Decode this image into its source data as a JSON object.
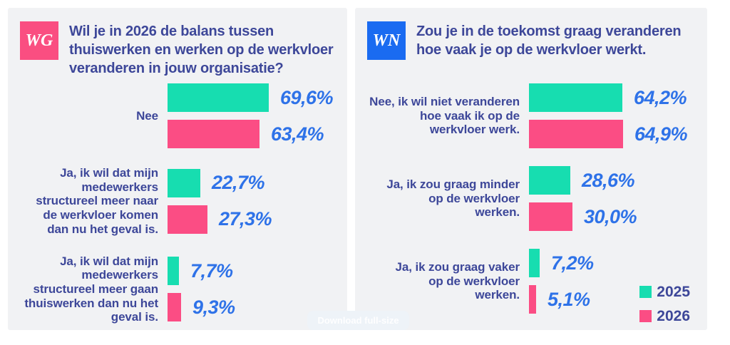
{
  "colors": {
    "teal_2025": "#17ddb0",
    "pink_2026": "#fb4d84",
    "badge_wg": "#fa4e81",
    "badge_wn": "#1a6bf1",
    "title_navy": "#3d4799",
    "value_blue": "#2e72e8",
    "panel_background": "#f1f2f4"
  },
  "legend": {
    "items": [
      {
        "label": "2025",
        "color": "#17ddb0"
      },
      {
        "label": "2026",
        "color": "#fb4d84"
      }
    ],
    "position": "bottom-right of right panel"
  },
  "watermark": {
    "label": "Download full-size"
  },
  "chart_data": [
    {
      "type": "bar",
      "orientation": "horizontal",
      "badge": "WG",
      "badge_color": "#fa4e81",
      "title": "Wil je in 2026 de balans tussen\nthuiswerken en werken op de werkvloer\nveranderen in jouw organisatie?",
      "categories": [
        "Nee",
        "Ja, ik wil dat mijn\nmedewerkers\nstructureel meer naar\nde werkvloer komen\ndan nu het geval is.",
        "Ja, ik wil dat mijn\nmedewerkers\nstructureel meer gaan\nthuiswerken dan nu het\ngeval is."
      ],
      "series": [
        {
          "name": "2025",
          "color": "#17ddb0",
          "values": [
            69.6,
            22.7,
            7.7
          ],
          "labels": [
            "69,6%",
            "22,7%",
            "7,7%"
          ]
        },
        {
          "name": "2026",
          "color": "#fb4d84",
          "values": [
            63.4,
            27.3,
            9.3
          ],
          "labels": [
            "63,4%",
            "27,3%",
            "9,3%"
          ]
        }
      ],
      "xlim": [
        0,
        100
      ],
      "grid": false
    },
    {
      "type": "bar",
      "orientation": "horizontal",
      "badge": "WN",
      "badge_color": "#1a6bf1",
      "title": "Zou je in de toekomst graag veranderen\nhoe vaak je op de werkvloer werkt.",
      "categories": [
        "Nee, ik wil niet veranderen\nhoe vaak ik op de\nwerkvloer werk.",
        "Ja, ik zou graag minder\nop de werkvloer\nwerken.",
        "Ja, ik zou graag vaker\nop de werkvloer\nwerken."
      ],
      "series": [
        {
          "name": "2025",
          "color": "#17ddb0",
          "values": [
            64.2,
            28.6,
            7.2
          ],
          "labels": [
            "64,2%",
            "28,6%",
            "7,2%"
          ]
        },
        {
          "name": "2026",
          "color": "#fb4d84",
          "values": [
            64.9,
            30.0,
            5.1
          ],
          "labels": [
            "64,9%",
            "30,0%",
            "5,1%"
          ]
        }
      ],
      "xlim": [
        0,
        100
      ],
      "grid": false
    }
  ]
}
